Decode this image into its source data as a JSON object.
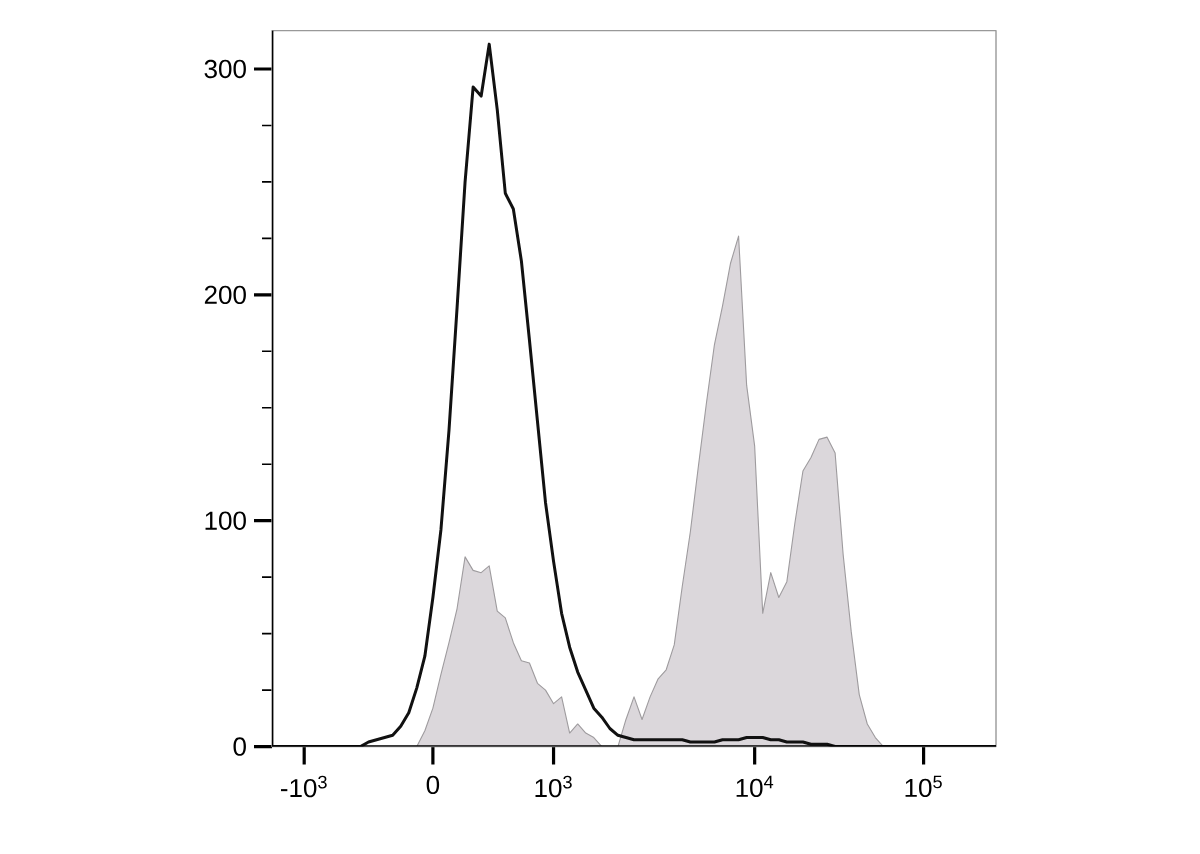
{
  "chart_data": {
    "type": "line",
    "categories": [
      null,
      null,
      null,
      null,
      "-10$^{3}$",
      null,
      null,
      null,
      null,
      null,
      null,
      null,
      null,
      null,
      null,
      null,
      null,
      null,
      null,
      null,
      "0",
      null,
      null,
      null,
      null,
      null,
      null,
      null,
      null,
      null,
      null,
      null,
      null,
      null,
      null,
      "10$^{3}$",
      null,
      null,
      null,
      null,
      null,
      null,
      null,
      null,
      null,
      null,
      null,
      null,
      null,
      null,
      null,
      null,
      null,
      null,
      null,
      null,
      null,
      null,
      null,
      null,
      "10$^{4}$",
      null,
      null,
      null,
      null,
      null,
      null,
      null,
      null,
      null,
      null,
      null,
      null,
      null,
      null,
      null,
      null,
      null,
      null,
      null,
      null,
      "10$^{5}$",
      null,
      null,
      null,
      null,
      null,
      null,
      null,
      null,
      null
    ],
    "ylim": [
      0,
      317
    ],
    "yticks": [
      0,
      {
        "value": 25,
        "label": null
      },
      {
        "value": 50,
        "label": null
      },
      {
        "value": 75,
        "label": null
      },
      100,
      {
        "value": 125,
        "label": null
      },
      {
        "value": 150,
        "label": null
      },
      {
        "value": 175,
        "label": null
      },
      200,
      {
        "value": 225,
        "label": null
      },
      {
        "value": 250,
        "label": null
      },
      {
        "value": 275,
        "label": null
      },
      300
    ],
    "series": [
      {
        "type": "area",
        "color": "#dbd7db",
        "values": [
          0,
          0,
          0,
          0,
          0,
          0,
          0,
          0,
          0,
          0,
          0,
          0,
          0,
          0,
          0,
          0,
          0,
          0,
          0,
          7,
          17,
          32,
          46,
          61,
          84,
          78,
          77,
          80,
          60,
          57,
          46,
          38,
          37,
          28,
          25,
          19,
          22,
          6,
          10,
          6,
          4,
          0,
          0,
          0,
          12,
          22,
          12,
          22,
          30,
          34,
          45,
          71,
          95,
          124,
          152,
          178,
          195,
          214,
          226,
          160,
          133,
          59,
          77,
          66,
          73,
          99,
          122,
          128,
          136,
          137,
          130,
          85,
          51,
          23,
          10,
          4,
          0,
          0,
          0,
          0,
          0,
          0,
          0,
          0,
          0,
          0,
          0,
          0,
          0,
          0,
          0
        ]
      },
      {
        "color": "#111111",
        "values": [
          0,
          0,
          0,
          0,
          0,
          0,
          0,
          0,
          0,
          0,
          0,
          0,
          2,
          3,
          4,
          5,
          9,
          15,
          26,
          40,
          66,
          96,
          140,
          194,
          250,
          292,
          288,
          311,
          282,
          245,
          238,
          215,
          180,
          144,
          108,
          82,
          59,
          44,
          33,
          25,
          17,
          13,
          8,
          5,
          4,
          3,
          3,
          3,
          3,
          3,
          3,
          3,
          2,
          2,
          2,
          2,
          3,
          3,
          3,
          4,
          4,
          4,
          3,
          3,
          2,
          2,
          2,
          1,
          1,
          1,
          0,
          0,
          0,
          0,
          0,
          0,
          0,
          0,
          0,
          0,
          0,
          0,
          0,
          0,
          0,
          0,
          0,
          0,
          0,
          0,
          0
        ]
      }
    ]
  }
}
